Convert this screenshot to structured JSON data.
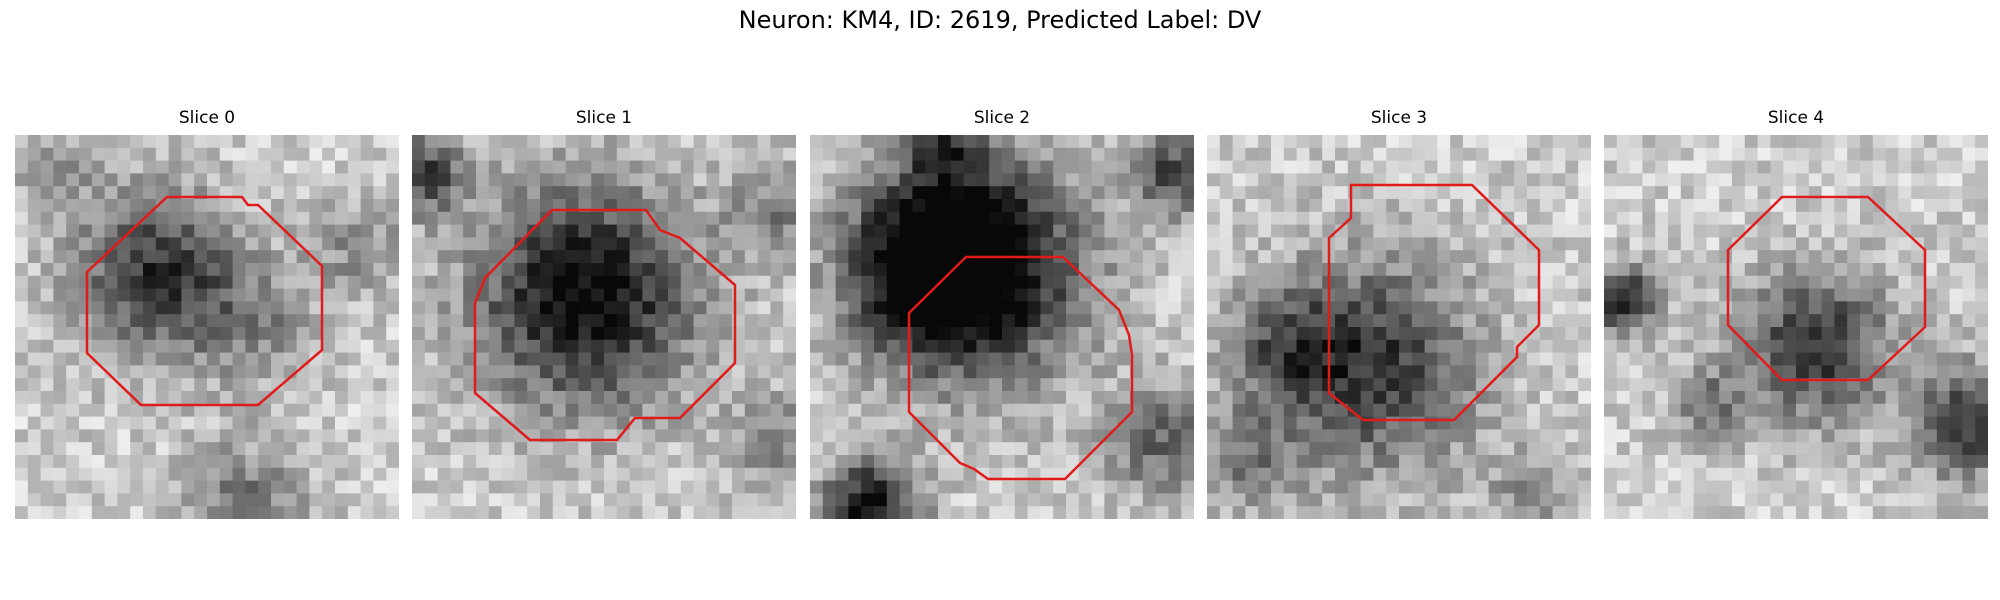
{
  "figure": {
    "title": "Neuron: KM4, ID: 2619, Predicted Label: DV"
  },
  "outline_color": "#e11a1a",
  "panels": [
    {
      "title": "Slice 0"
    },
    {
      "title": "Slice 1"
    },
    {
      "title": "Slice 2"
    },
    {
      "title": "Slice 3"
    },
    {
      "title": "Slice 4"
    }
  ]
}
